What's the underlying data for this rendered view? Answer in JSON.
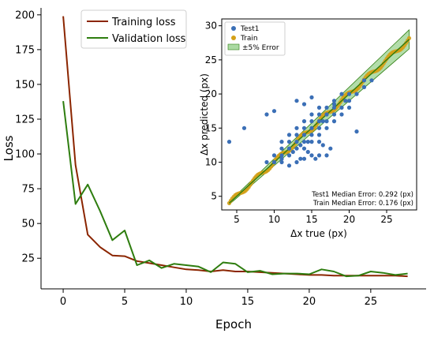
{
  "chart_data": [
    {
      "type": "line",
      "title": "",
      "xlabel": "Epoch",
      "ylabel": "Loss",
      "xlim": [
        -1.8,
        29.5
      ],
      "ylim": [
        3,
        205
      ],
      "xticks": [
        0,
        5,
        10,
        15,
        20,
        25
      ],
      "yticks": [
        25,
        50,
        75,
        100,
        125,
        150,
        175,
        200
      ],
      "grid": false,
      "legend_position": "upper-left",
      "series": [
        {
          "name": "Training loss",
          "color": "#8B2500",
          "x": [
            0,
            1,
            2,
            3,
            4,
            5,
            6,
            7,
            8,
            9,
            10,
            11,
            12,
            13,
            14,
            15,
            16,
            17,
            18,
            19,
            20,
            21,
            22,
            23,
            24,
            25,
            26,
            27,
            28
          ],
          "y": [
            199,
            92,
            42,
            33,
            27,
            26.5,
            23,
            21.5,
            20,
            18.5,
            17,
            16.5,
            15.5,
            16.5,
            15.5,
            15.5,
            15,
            14.5,
            14,
            13.5,
            13,
            13,
            12.5,
            12.5,
            12.5,
            12.5,
            12.5,
            12.5,
            12
          ]
        },
        {
          "name": "Validation loss",
          "color": "#2E7D0F",
          "x": [
            0,
            1,
            2,
            3,
            4,
            5,
            6,
            7,
            8,
            9,
            10,
            11,
            12,
            13,
            14,
            15,
            16,
            17,
            18,
            19,
            20,
            21,
            22,
            23,
            24,
            25,
            26,
            27,
            28
          ],
          "y": [
            138,
            64,
            78,
            59,
            38,
            45,
            20,
            23.5,
            18,
            21,
            20,
            19,
            15,
            22,
            21,
            15,
            16,
            13.5,
            14,
            14,
            13.5,
            17,
            15.5,
            12,
            12.5,
            15.5,
            14.5,
            13,
            14
          ]
        }
      ]
    },
    {
      "type": "scatter",
      "title": "",
      "xlabel": "Δx true (px)",
      "ylabel": "Δx predicted (px)",
      "xlim": [
        3,
        29
      ],
      "ylim": [
        3,
        31
      ],
      "xticks": [
        5,
        10,
        15,
        20,
        25
      ],
      "yticks": [
        5,
        10,
        15,
        20,
        25,
        30
      ],
      "grid": false,
      "legend_position": "upper-left",
      "legend": [
        "Test1",
        "Train",
        "±5% Error"
      ],
      "series_colors": {
        "test": "#3B6FB6",
        "train": "#D4A017",
        "error_band": "#66BB55"
      },
      "error_band": {
        "from": 4,
        "to": 28,
        "relative": 0.05
      },
      "train_line": {
        "x": [
          4,
          28
        ],
        "y": [
          4,
          28
        ]
      },
      "test_points": [
        [
          4,
          13
        ],
        [
          6,
          15
        ],
        [
          9,
          17
        ],
        [
          10,
          17.5
        ],
        [
          13,
          19
        ],
        [
          14,
          18.5
        ],
        [
          15,
          19.5
        ],
        [
          16,
          18
        ],
        [
          16.5,
          16
        ],
        [
          18,
          19
        ],
        [
          19,
          20
        ],
        [
          21,
          14.5
        ],
        [
          11,
          10
        ],
        [
          12,
          9.5
        ],
        [
          13,
          10
        ],
        [
          14,
          10.5
        ],
        [
          15,
          11
        ],
        [
          15.5,
          10.5
        ],
        [
          16,
          11
        ],
        [
          17,
          11
        ],
        [
          17.5,
          12
        ],
        [
          12.5,
          11.5
        ],
        [
          13.5,
          12.5
        ],
        [
          14.5,
          13
        ],
        [
          15,
          14
        ],
        [
          16,
          15
        ],
        [
          17,
          16
        ],
        [
          18,
          17
        ],
        [
          19,
          18
        ],
        [
          20,
          19
        ],
        [
          12,
          13
        ],
        [
          11,
          12
        ],
        [
          10,
          11
        ],
        [
          9,
          10
        ],
        [
          13,
          14
        ],
        [
          14,
          15
        ],
        [
          16,
          17
        ],
        [
          15,
          16
        ],
        [
          17,
          18
        ],
        [
          18,
          18.5
        ],
        [
          19.5,
          19
        ],
        [
          20,
          20
        ],
        [
          22,
          21
        ],
        [
          23,
          22
        ],
        [
          12,
          11
        ],
        [
          14,
          13
        ],
        [
          16,
          14
        ],
        [
          17,
          15
        ],
        [
          18,
          16
        ],
        [
          13,
          12
        ],
        [
          15,
          13
        ],
        [
          10,
          10
        ],
        [
          11,
          10.5
        ],
        [
          14,
          12
        ],
        [
          16,
          13
        ],
        [
          13,
          15
        ],
        [
          12,
          14
        ],
        [
          11,
          13
        ],
        [
          15,
          17
        ],
        [
          14,
          16
        ],
        [
          17,
          17
        ],
        [
          19,
          17
        ],
        [
          20,
          18
        ],
        [
          21,
          20
        ],
        [
          22,
          22
        ],
        [
          12,
          12
        ],
        [
          13,
          13
        ],
        [
          14,
          14
        ],
        [
          15,
          15
        ],
        [
          16,
          16
        ],
        [
          18,
          18
        ],
        [
          11,
          11
        ],
        [
          14.5,
          11.5
        ],
        [
          16.5,
          12.5
        ],
        [
          13.5,
          10.5
        ]
      ],
      "legend_entries": [
        {
          "label": "Test1",
          "color": "#3B6FB6"
        },
        {
          "label": "Train",
          "color": "#D4A017"
        },
        {
          "label": "±5% Error",
          "color": "#66BB55"
        }
      ],
      "annotations": [
        "Test1 Median Error: 0.292 (px)",
        "Train Median Error: 0.176 (px)"
      ]
    }
  ]
}
